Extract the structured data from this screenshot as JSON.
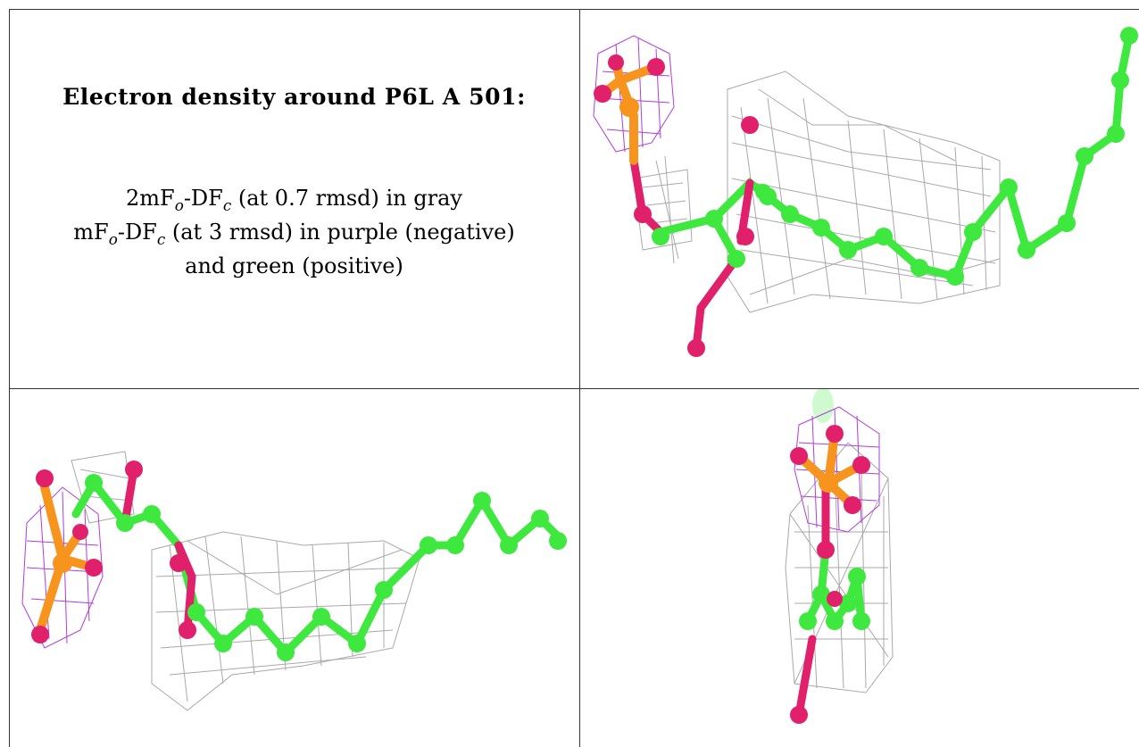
{
  "caption": {
    "title": "Electron density around P6L A 501:",
    "line1": {
      "a": "2mF",
      "o": "o",
      "b": "-DF",
      "c": "c",
      "rest": " (at 0.7 rmsd) in gray"
    },
    "line2": {
      "a": "mF",
      "o": "o",
      "b": "-DF",
      "c": "c",
      "rest": " (at 3 rmsd) in purple (negative)"
    },
    "line3": "and green (positive)"
  },
  "colors": {
    "carbon": "#3ee83e",
    "oxygen": "#e0206a",
    "phosphorus": "#f7941d",
    "mesh_gray": "#9a9a9a",
    "mesh_purple": "#b23cd8",
    "border": "#333333"
  }
}
